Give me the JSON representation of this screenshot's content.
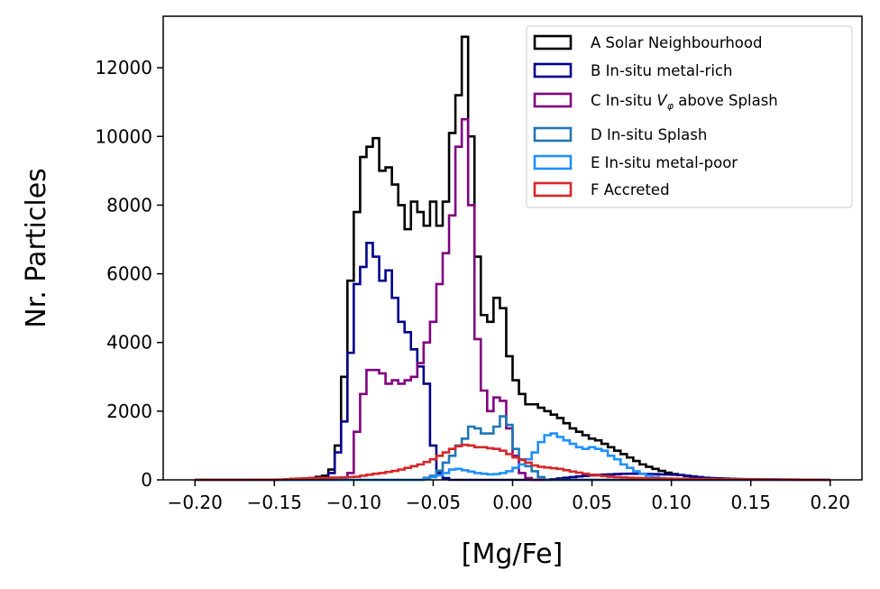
{
  "chart_data": {
    "type": "histogram",
    "xlabel": "[Mg/Fe]",
    "ylabel": "Nr. Particles",
    "xlim": [
      -0.22,
      0.22
    ],
    "ylim": [
      0,
      13500
    ],
    "x_ticks": [
      -0.2,
      -0.15,
      -0.1,
      -0.05,
      0.0,
      0.05,
      0.1,
      0.15,
      0.2
    ],
    "x_tick_labels": [
      "−0.20",
      "−0.15",
      "−0.10",
      "−0.05",
      "0.00",
      "0.05",
      "0.10",
      "0.15",
      "0.20"
    ],
    "y_ticks": [
      0,
      2000,
      4000,
      6000,
      8000,
      10000,
      12000
    ],
    "y_tick_labels": [
      "0",
      "2000",
      "4000",
      "6000",
      "8000",
      "10000",
      "12000"
    ],
    "bin_range": [
      -0.2,
      0.2
    ],
    "bin_width": 0.004,
    "legend_position": "upper right",
    "series": [
      {
        "name": "A Solar Neighbourhood",
        "color": "#000000",
        "points": [
          [
            -0.2,
            0
          ],
          [
            -0.15,
            0
          ],
          [
            -0.13,
            40
          ],
          [
            -0.12,
            120
          ],
          [
            -0.116,
            300
          ],
          [
            -0.112,
            1000
          ],
          [
            -0.108,
            3000
          ],
          [
            -0.104,
            5800
          ],
          [
            -0.1,
            7800
          ],
          [
            -0.096,
            9400
          ],
          [
            -0.092,
            9700
          ],
          [
            -0.088,
            9950
          ],
          [
            -0.084,
            9000
          ],
          [
            -0.08,
            9100
          ],
          [
            -0.076,
            8600
          ],
          [
            -0.072,
            8000
          ],
          [
            -0.068,
            7300
          ],
          [
            -0.064,
            8100
          ],
          [
            -0.06,
            7800
          ],
          [
            -0.056,
            7400
          ],
          [
            -0.052,
            8100
          ],
          [
            -0.048,
            7400
          ],
          [
            -0.044,
            8100
          ],
          [
            -0.04,
            10100
          ],
          [
            -0.036,
            11200
          ],
          [
            -0.032,
            12900
          ],
          [
            -0.028,
            10000
          ],
          [
            -0.024,
            6500
          ],
          [
            -0.02,
            4800
          ],
          [
            -0.016,
            4600
          ],
          [
            -0.012,
            5300
          ],
          [
            -0.008,
            5000
          ],
          [
            -0.004,
            3600
          ],
          [
            0.0,
            2900
          ],
          [
            0.004,
            2500
          ],
          [
            0.008,
            2200
          ],
          [
            0.012,
            2200
          ],
          [
            0.016,
            2100
          ],
          [
            0.02,
            2000
          ],
          [
            0.024,
            1900
          ],
          [
            0.028,
            1800
          ],
          [
            0.032,
            1650
          ],
          [
            0.036,
            1500
          ],
          [
            0.04,
            1400
          ],
          [
            0.044,
            1300
          ],
          [
            0.048,
            1200
          ],
          [
            0.052,
            1150
          ],
          [
            0.056,
            1050
          ],
          [
            0.06,
            950
          ],
          [
            0.064,
            850
          ],
          [
            0.068,
            750
          ],
          [
            0.072,
            650
          ],
          [
            0.076,
            550
          ],
          [
            0.08,
            450
          ],
          [
            0.084,
            380
          ],
          [
            0.088,
            320
          ],
          [
            0.092,
            260
          ],
          [
            0.096,
            210
          ],
          [
            0.1,
            170
          ],
          [
            0.104,
            140
          ],
          [
            0.108,
            110
          ],
          [
            0.112,
            90
          ],
          [
            0.116,
            70
          ],
          [
            0.12,
            50
          ],
          [
            0.13,
            30
          ],
          [
            0.14,
            15
          ],
          [
            0.16,
            5
          ],
          [
            0.2,
            0
          ]
        ]
      },
      {
        "name": "B In-situ metal-rich",
        "color": "#00008b",
        "points": [
          [
            -0.2,
            0
          ],
          [
            -0.14,
            0
          ],
          [
            -0.12,
            20
          ],
          [
            -0.116,
            200
          ],
          [
            -0.112,
            800
          ],
          [
            -0.108,
            1700
          ],
          [
            -0.104,
            3700
          ],
          [
            -0.1,
            5700
          ],
          [
            -0.096,
            6200
          ],
          [
            -0.092,
            6900
          ],
          [
            -0.088,
            6500
          ],
          [
            -0.084,
            5800
          ],
          [
            -0.08,
            6100
          ],
          [
            -0.076,
            5300
          ],
          [
            -0.072,
            4600
          ],
          [
            -0.068,
            4300
          ],
          [
            -0.064,
            3800
          ],
          [
            -0.06,
            3300
          ],
          [
            -0.056,
            2800
          ],
          [
            -0.052,
            1000
          ],
          [
            -0.048,
            200
          ],
          [
            -0.044,
            50
          ],
          [
            -0.04,
            0
          ],
          [
            0.0,
            0
          ],
          [
            0.02,
            0
          ],
          [
            0.03,
            50
          ],
          [
            0.04,
            100
          ],
          [
            0.05,
            140
          ],
          [
            0.06,
            160
          ],
          [
            0.064,
            170
          ],
          [
            0.068,
            175
          ],
          [
            0.072,
            180
          ],
          [
            0.076,
            180
          ],
          [
            0.08,
            175
          ],
          [
            0.084,
            170
          ],
          [
            0.088,
            165
          ],
          [
            0.092,
            160
          ],
          [
            0.096,
            155
          ],
          [
            0.1,
            150
          ],
          [
            0.104,
            140
          ],
          [
            0.108,
            120
          ],
          [
            0.112,
            100
          ],
          [
            0.116,
            80
          ],
          [
            0.12,
            60
          ],
          [
            0.13,
            40
          ],
          [
            0.14,
            25
          ],
          [
            0.15,
            15
          ],
          [
            0.2,
            0
          ]
        ]
      },
      {
        "name": "C In-situ Vφ above Splash",
        "color": "#800080",
        "points": [
          [
            -0.2,
            0
          ],
          [
            -0.11,
            0
          ],
          [
            -0.104,
            200
          ],
          [
            -0.1,
            1400
          ],
          [
            -0.096,
            2500
          ],
          [
            -0.092,
            3200
          ],
          [
            -0.088,
            3200
          ],
          [
            -0.084,
            3100
          ],
          [
            -0.08,
            2800
          ],
          [
            -0.076,
            2900
          ],
          [
            -0.072,
            2800
          ],
          [
            -0.068,
            2900
          ],
          [
            -0.064,
            3000
          ],
          [
            -0.06,
            3400
          ],
          [
            -0.056,
            4000
          ],
          [
            -0.052,
            4600
          ],
          [
            -0.048,
            5700
          ],
          [
            -0.044,
            6600
          ],
          [
            -0.04,
            7700
          ],
          [
            -0.036,
            9700
          ],
          [
            -0.032,
            10500
          ],
          [
            -0.028,
            8000
          ],
          [
            -0.024,
            4100
          ],
          [
            -0.02,
            2600
          ],
          [
            -0.016,
            2000
          ],
          [
            -0.012,
            2400
          ],
          [
            -0.008,
            2300
          ],
          [
            -0.004,
            1500
          ],
          [
            0.0,
            700
          ],
          [
            0.004,
            200
          ],
          [
            0.008,
            50
          ],
          [
            0.012,
            0
          ],
          [
            0.2,
            0
          ]
        ]
      },
      {
        "name": "D In-situ Splash",
        "color": "#1f77b4",
        "points": [
          [
            -0.2,
            0
          ],
          [
            -0.06,
            0
          ],
          [
            -0.05,
            150
          ],
          [
            -0.044,
            500
          ],
          [
            -0.04,
            700
          ],
          [
            -0.036,
            1000
          ],
          [
            -0.032,
            1200
          ],
          [
            -0.028,
            1550
          ],
          [
            -0.024,
            1500
          ],
          [
            -0.02,
            1350
          ],
          [
            -0.016,
            1350
          ],
          [
            -0.012,
            1550
          ],
          [
            -0.008,
            1850
          ],
          [
            -0.004,
            1600
          ],
          [
            0.0,
            900
          ],
          [
            0.004,
            600
          ],
          [
            0.008,
            400
          ],
          [
            0.012,
            250
          ],
          [
            0.016,
            80
          ],
          [
            0.02,
            0
          ],
          [
            0.2,
            0
          ]
        ]
      },
      {
        "name": "E In-situ metal-poor",
        "color": "#1e90ff",
        "points": [
          [
            -0.2,
            0
          ],
          [
            -0.06,
            0
          ],
          [
            -0.05,
            100
          ],
          [
            -0.044,
            200
          ],
          [
            -0.04,
            300
          ],
          [
            -0.036,
            320
          ],
          [
            -0.032,
            280
          ],
          [
            -0.028,
            240
          ],
          [
            -0.024,
            200
          ],
          [
            -0.02,
            180
          ],
          [
            -0.016,
            160
          ],
          [
            -0.012,
            170
          ],
          [
            -0.008,
            200
          ],
          [
            -0.004,
            250
          ],
          [
            0.0,
            350
          ],
          [
            0.004,
            450
          ],
          [
            0.008,
            600
          ],
          [
            0.012,
            800
          ],
          [
            0.016,
            1100
          ],
          [
            0.02,
            1300
          ],
          [
            0.024,
            1350
          ],
          [
            0.028,
            1250
          ],
          [
            0.032,
            1150
          ],
          [
            0.036,
            1050
          ],
          [
            0.04,
            950
          ],
          [
            0.044,
            900
          ],
          [
            0.048,
            950
          ],
          [
            0.052,
            900
          ],
          [
            0.056,
            850
          ],
          [
            0.06,
            700
          ],
          [
            0.064,
            600
          ],
          [
            0.068,
            450
          ],
          [
            0.072,
            350
          ],
          [
            0.076,
            250
          ],
          [
            0.08,
            180
          ],
          [
            0.084,
            120
          ],
          [
            0.088,
            80
          ],
          [
            0.092,
            50
          ],
          [
            0.1,
            20
          ],
          [
            0.2,
            0
          ]
        ]
      },
      {
        "name": "F Accreted",
        "color": "#d62728",
        "points": [
          [
            -0.2,
            0
          ],
          [
            -0.15,
            5
          ],
          [
            -0.14,
            30
          ],
          [
            -0.13,
            50
          ],
          [
            -0.12,
            60
          ],
          [
            -0.11,
            70
          ],
          [
            -0.1,
            90
          ],
          [
            -0.096,
            120
          ],
          [
            -0.092,
            150
          ],
          [
            -0.088,
            180
          ],
          [
            -0.084,
            200
          ],
          [
            -0.08,
            230
          ],
          [
            -0.076,
            260
          ],
          [
            -0.072,
            300
          ],
          [
            -0.068,
            350
          ],
          [
            -0.064,
            400
          ],
          [
            -0.06,
            450
          ],
          [
            -0.056,
            520
          ],
          [
            -0.052,
            600
          ],
          [
            -0.048,
            700
          ],
          [
            -0.044,
            800
          ],
          [
            -0.04,
            900
          ],
          [
            -0.036,
            980
          ],
          [
            -0.032,
            1020
          ],
          [
            -0.028,
            1000
          ],
          [
            -0.024,
            950
          ],
          [
            -0.02,
            950
          ],
          [
            -0.016,
            920
          ],
          [
            -0.012,
            900
          ],
          [
            -0.008,
            850
          ],
          [
            -0.004,
            750
          ],
          [
            0.0,
            650
          ],
          [
            0.004,
            580
          ],
          [
            0.008,
            500
          ],
          [
            0.012,
            420
          ],
          [
            0.016,
            380
          ],
          [
            0.02,
            360
          ],
          [
            0.024,
            340
          ],
          [
            0.028,
            320
          ],
          [
            0.032,
            280
          ],
          [
            0.036,
            240
          ],
          [
            0.04,
            210
          ],
          [
            0.044,
            180
          ],
          [
            0.048,
            150
          ],
          [
            0.052,
            130
          ],
          [
            0.056,
            110
          ],
          [
            0.06,
            90
          ],
          [
            0.064,
            80
          ],
          [
            0.068,
            70
          ],
          [
            0.072,
            60
          ],
          [
            0.08,
            50
          ],
          [
            0.09,
            40
          ],
          [
            0.1,
            35
          ],
          [
            0.11,
            30
          ],
          [
            0.12,
            25
          ],
          [
            0.14,
            20
          ],
          [
            0.16,
            10
          ],
          [
            0.18,
            5
          ],
          [
            0.2,
            0
          ]
        ]
      }
    ]
  }
}
